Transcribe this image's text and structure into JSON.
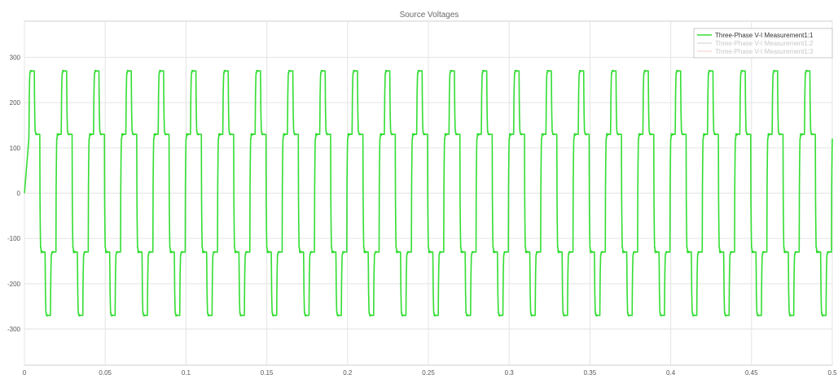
{
  "chart_data": {
    "type": "line",
    "title": "Source Voltages",
    "xlabel": "",
    "ylabel": "",
    "xlim": [
      0,
      0.5
    ],
    "ylim": [
      -380,
      380
    ],
    "x_ticks": [
      0,
      0.05,
      0.1,
      0.15,
      0.2,
      0.25,
      0.3,
      0.35,
      0.4,
      0.45,
      0.5
    ],
    "x_tick_labels": [
      "0",
      "0.05",
      "0.1",
      "0.15",
      "0.2",
      "0.25",
      "0.3",
      "0.35",
      "0.4",
      "0.45",
      "0.5"
    ],
    "y_ticks": [
      -300,
      -200,
      -100,
      0,
      100,
      200,
      300
    ],
    "y_tick_labels": [
      "-300",
      "-200",
      "-100",
      "0",
      "100",
      "200",
      "300"
    ],
    "grid": true,
    "legend": "top-right",
    "series": [
      {
        "name": "Three-Phase V-I Measurement1:1",
        "color": "#33dd33",
        "visible": true,
        "waveform": "six-step",
        "frequency_hz": 50,
        "levels": [
          0,
          130,
          270
        ],
        "phase_shift_s": -0.0005
      },
      {
        "name": "Three-Phase V-I Measurement1:2",
        "color": "#cfcfcf",
        "visible": false
      },
      {
        "name": "Three-Phase V-I Measurement1:3",
        "color": "#f0c8c8",
        "visible": false
      }
    ]
  }
}
